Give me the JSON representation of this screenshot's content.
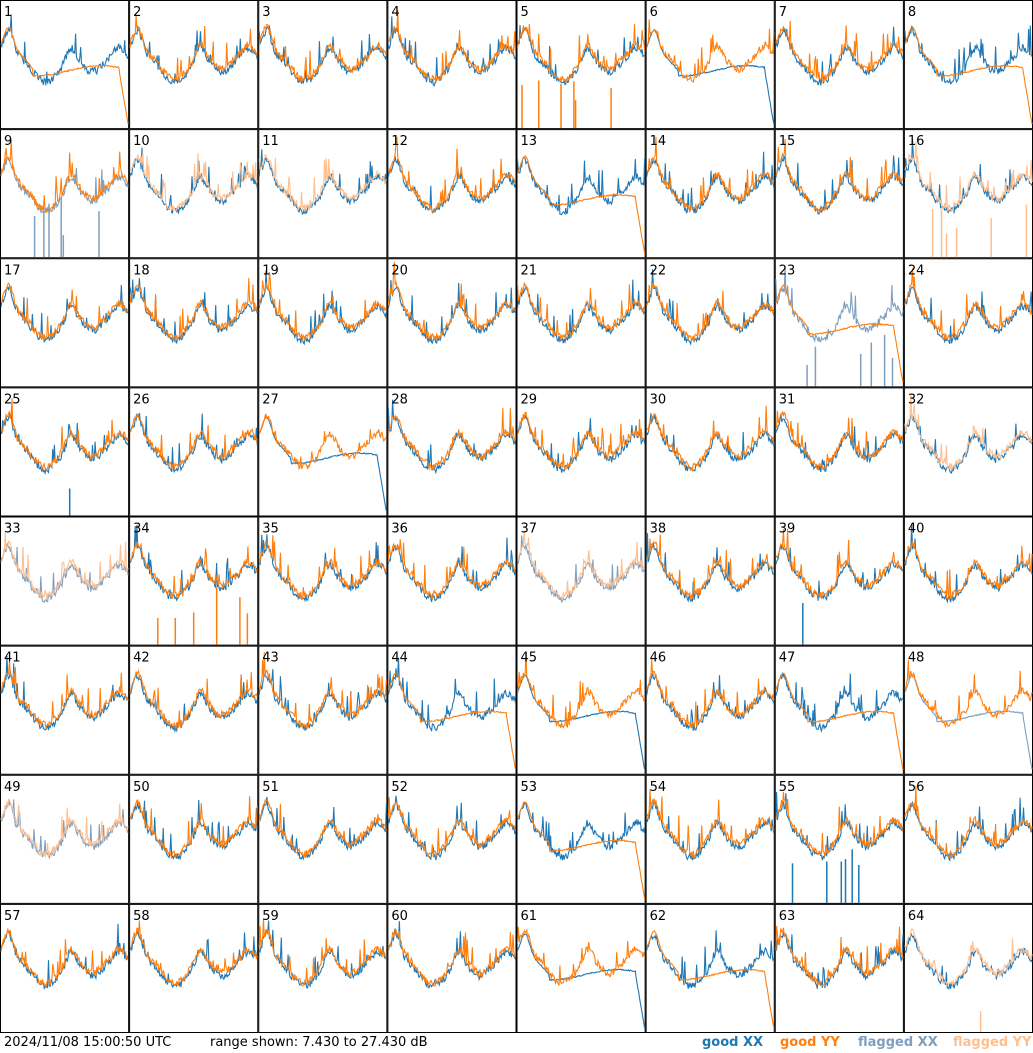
{
  "timestamp": "2024/11/08 15:00:50 UTC",
  "range_text": "range shown: 7.430 to 27.430 dB",
  "legend": {
    "good_xx": "good XX",
    "good_yy": "good YY",
    "flagged_xx": "flagged XX",
    "flagged_yy": "flagged YY"
  },
  "colors": {
    "good_xx": "#1f77b4",
    "good_yy": "#ff7f0e",
    "flagged_xx": "#7f9fbf",
    "flagged_yy": "#ffbf8f"
  },
  "chart_data": {
    "type": "line",
    "title": "",
    "ylim": [
      7.43,
      27.43
    ],
    "grid": "8x8 small multiples",
    "panels": [
      {
        "id": "1",
        "xx": "good",
        "yy": "good",
        "anomaly": "yy_drop"
      },
      {
        "id": "2",
        "xx": "good",
        "yy": "good",
        "anomaly": "none"
      },
      {
        "id": "3",
        "xx": "good",
        "yy": "good",
        "anomaly": "none"
      },
      {
        "id": "4",
        "xx": "good",
        "yy": "good",
        "anomaly": "none"
      },
      {
        "id": "5",
        "xx": "good",
        "yy": "good",
        "anomaly": "yy_spikes"
      },
      {
        "id": "6",
        "xx": "good",
        "yy": "good",
        "anomaly": "xx_drop"
      },
      {
        "id": "7",
        "xx": "good",
        "yy": "good",
        "anomaly": "none"
      },
      {
        "id": "8",
        "xx": "good",
        "yy": "good",
        "anomaly": "yy_drop"
      },
      {
        "id": "9",
        "xx": "flagged",
        "yy": "good",
        "anomaly": "xx_spikes"
      },
      {
        "id": "10",
        "xx": "good",
        "yy": "flagged",
        "anomaly": "none"
      },
      {
        "id": "11",
        "xx": "good",
        "yy": "flagged",
        "anomaly": "none"
      },
      {
        "id": "12",
        "xx": "good",
        "yy": "good",
        "anomaly": "none"
      },
      {
        "id": "13",
        "xx": "good",
        "yy": "good",
        "anomaly": "yy_drop"
      },
      {
        "id": "14",
        "xx": "good",
        "yy": "good",
        "anomaly": "none"
      },
      {
        "id": "15",
        "xx": "good",
        "yy": "good",
        "anomaly": "none"
      },
      {
        "id": "16",
        "xx": "good",
        "yy": "flagged",
        "anomaly": "yy_spikes"
      },
      {
        "id": "17",
        "xx": "good",
        "yy": "good",
        "anomaly": "none"
      },
      {
        "id": "18",
        "xx": "good",
        "yy": "good",
        "anomaly": "none"
      },
      {
        "id": "19",
        "xx": "good",
        "yy": "good",
        "anomaly": "none"
      },
      {
        "id": "20",
        "xx": "good",
        "yy": "good",
        "anomaly": "none"
      },
      {
        "id": "21",
        "xx": "good",
        "yy": "good",
        "anomaly": "none"
      },
      {
        "id": "22",
        "xx": "good",
        "yy": "good",
        "anomaly": "none"
      },
      {
        "id": "23",
        "xx": "flagged",
        "yy": "good",
        "anomaly": "xx_spikes_yy_flat"
      },
      {
        "id": "24",
        "xx": "good",
        "yy": "good",
        "anomaly": "none"
      },
      {
        "id": "25",
        "xx": "good",
        "yy": "good",
        "anomaly": "xx_spike"
      },
      {
        "id": "26",
        "xx": "good",
        "yy": "good",
        "anomaly": "none"
      },
      {
        "id": "27",
        "xx": "good",
        "yy": "good",
        "anomaly": "xx_drop"
      },
      {
        "id": "28",
        "xx": "good",
        "yy": "good",
        "anomaly": "none"
      },
      {
        "id": "29",
        "xx": "good",
        "yy": "good",
        "anomaly": "none"
      },
      {
        "id": "30",
        "xx": "good",
        "yy": "good",
        "anomaly": "none"
      },
      {
        "id": "31",
        "xx": "good",
        "yy": "good",
        "anomaly": "none"
      },
      {
        "id": "32",
        "xx": "good",
        "yy": "flagged",
        "anomaly": "xx_low"
      },
      {
        "id": "33",
        "xx": "flagged",
        "yy": "flagged",
        "anomaly": "none"
      },
      {
        "id": "34",
        "xx": "good",
        "yy": "good",
        "anomaly": "yy_spikes"
      },
      {
        "id": "35",
        "xx": "good",
        "yy": "good",
        "anomaly": "none"
      },
      {
        "id": "36",
        "xx": "good",
        "yy": "good",
        "anomaly": "none"
      },
      {
        "id": "37",
        "xx": "flagged",
        "yy": "flagged",
        "anomaly": "none"
      },
      {
        "id": "38",
        "xx": "good",
        "yy": "good",
        "anomaly": "none"
      },
      {
        "id": "39",
        "xx": "good",
        "yy": "good",
        "anomaly": "xx_spike"
      },
      {
        "id": "40",
        "xx": "good",
        "yy": "good",
        "anomaly": "none"
      },
      {
        "id": "41",
        "xx": "good",
        "yy": "good",
        "anomaly": "none"
      },
      {
        "id": "42",
        "xx": "good",
        "yy": "good",
        "anomaly": "none"
      },
      {
        "id": "43",
        "xx": "good",
        "yy": "good",
        "anomaly": "none"
      },
      {
        "id": "44",
        "xx": "good",
        "yy": "good",
        "anomaly": "yy_drop"
      },
      {
        "id": "45",
        "xx": "good",
        "yy": "good",
        "anomaly": "xx_drop"
      },
      {
        "id": "46",
        "xx": "good",
        "yy": "good",
        "anomaly": "none"
      },
      {
        "id": "47",
        "xx": "good",
        "yy": "good",
        "anomaly": "yy_drop"
      },
      {
        "id": "48",
        "xx": "flagged",
        "yy": "good",
        "anomaly": "xx_drop"
      },
      {
        "id": "49",
        "xx": "flagged",
        "yy": "flagged",
        "anomaly": "none"
      },
      {
        "id": "50",
        "xx": "good",
        "yy": "good",
        "anomaly": "none"
      },
      {
        "id": "51",
        "xx": "good",
        "yy": "good",
        "anomaly": "none"
      },
      {
        "id": "52",
        "xx": "good",
        "yy": "good",
        "anomaly": "none"
      },
      {
        "id": "53",
        "xx": "good",
        "yy": "good",
        "anomaly": "yy_drop"
      },
      {
        "id": "54",
        "xx": "good",
        "yy": "good",
        "anomaly": "none"
      },
      {
        "id": "55",
        "xx": "good",
        "yy": "good",
        "anomaly": "xx_spikes"
      },
      {
        "id": "56",
        "xx": "good",
        "yy": "good",
        "anomaly": "none"
      },
      {
        "id": "57",
        "xx": "good",
        "yy": "good",
        "anomaly": "none"
      },
      {
        "id": "58",
        "xx": "good",
        "yy": "good",
        "anomaly": "none"
      },
      {
        "id": "59",
        "xx": "good",
        "yy": "good",
        "anomaly": "none"
      },
      {
        "id": "60",
        "xx": "good",
        "yy": "good",
        "anomaly": "none"
      },
      {
        "id": "61",
        "xx": "good",
        "yy": "good",
        "anomaly": "xx_drop"
      },
      {
        "id": "62",
        "xx": "good",
        "yy": "good",
        "anomaly": "yy_drop"
      },
      {
        "id": "63",
        "xx": "good",
        "yy": "good",
        "anomaly": "none"
      },
      {
        "id": "64",
        "xx": "good",
        "yy": "flagged",
        "anomaly": "yy_spike"
      }
    ]
  }
}
